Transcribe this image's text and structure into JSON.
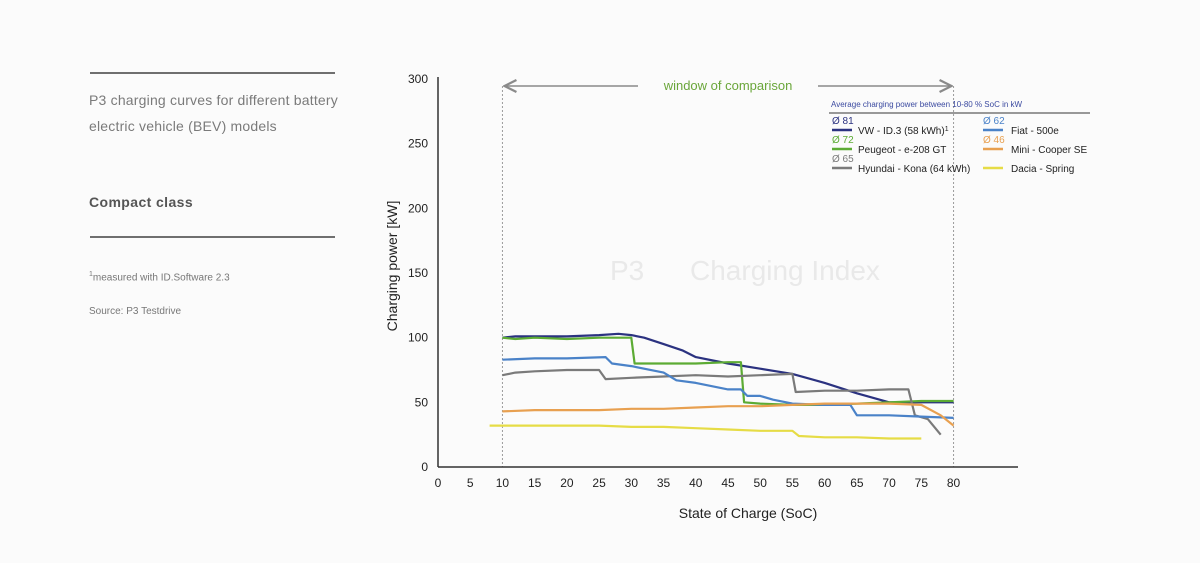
{
  "sidebar": {
    "description": "P3 charging curves for different battery electric vehicle (BEV) models",
    "class_label": "Compact class",
    "footnote_mark": "1",
    "footnote_text": "measured with ID.Software 2.3",
    "source": "Source: P3 Testdrive"
  },
  "watermark": {
    "logo": "P3",
    "text": "Charging Index"
  },
  "chart_data": {
    "type": "line",
    "xlabel": "State of Charge (SoC)",
    "ylabel": "Charging power [kW]",
    "xlim": [
      0,
      90
    ],
    "ylim": [
      0,
      300
    ],
    "x_ticks": [
      0,
      5,
      10,
      15,
      20,
      25,
      30,
      35,
      40,
      45,
      50,
      55,
      60,
      65,
      70,
      75,
      80
    ],
    "x_tick_labels": [
      "0",
      "5",
      "10",
      "15",
      "20",
      "25",
      "30",
      "35",
      "40",
      "45",
      "50",
      "55",
      "60",
      "65",
      "70",
      "75",
      "80"
    ],
    "y_ticks": [
      0,
      50,
      100,
      150,
      200,
      250,
      300
    ],
    "grid": false,
    "window": {
      "label": "window of comparison",
      "start": 10,
      "end": 80
    },
    "legend": {
      "title": "Average charging power between 10-80 % SoC in kW",
      "placement": "top-right",
      "entries": [
        {
          "avg": "Ø 81",
          "name": "VW - ID.3 (58 kWh)",
          "sup": "1",
          "color": "#2b3280",
          "column": 0,
          "row": 0
        },
        {
          "avg": "Ø 72",
          "name": "Peugeot - e-208 GT",
          "sup": "",
          "color": "#5cab34",
          "column": 0,
          "row": 1
        },
        {
          "avg": "Ø 65",
          "name": "Hyundai - Kona (64 kWh)",
          "sup": "",
          "color": "#7a7a7a",
          "column": 0,
          "row": 2
        },
        {
          "avg": "Ø 62",
          "name": "Fiat - 500e",
          "sup": "",
          "color": "#4a82c8",
          "column": 1,
          "row": 0
        },
        {
          "avg": "Ø 46",
          "name": "Mini - Cooper SE",
          "sup": "",
          "color": "#e8a050",
          "column": 1,
          "row": 1
        },
        {
          "avg": "",
          "name": "Dacia - Spring",
          "sup": "",
          "color": "#e6dc46",
          "column": 1,
          "row": 2
        }
      ]
    },
    "series": [
      {
        "name": "VW - ID.3 (58 kWh)",
        "color": "#2b3280",
        "x": [
          10,
          12,
          15,
          20,
          25,
          28,
          30,
          32,
          35,
          38,
          40,
          45,
          50,
          55,
          60,
          65,
          70,
          75,
          78,
          80
        ],
        "y": [
          100,
          101,
          101,
          101,
          102,
          103,
          102,
          100,
          95,
          90,
          85,
          80,
          76,
          72,
          65,
          57,
          50,
          50,
          50,
          50
        ]
      },
      {
        "name": "Peugeot - e-208 GT",
        "color": "#5cab34",
        "x": [
          10,
          12,
          15,
          20,
          25,
          30,
          30.5,
          35,
          40,
          45,
          47,
          47.5,
          50,
          55,
          60,
          65,
          70,
          75,
          80
        ],
        "y": [
          100,
          99,
          100,
          99,
          100,
          100,
          80,
          80,
          80,
          81,
          81,
          50,
          49,
          48,
          48,
          49,
          50,
          51,
          51
        ]
      },
      {
        "name": "Hyundai - Kona (64 kWh)",
        "color": "#7a7a7a",
        "x": [
          10,
          12,
          15,
          20,
          25,
          26,
          30,
          35,
          40,
          45,
          50,
          55,
          55.5,
          60,
          65,
          70,
          73,
          74,
          76,
          78
        ],
        "y": [
          71,
          73,
          74,
          75,
          75,
          68,
          69,
          70,
          71,
          70,
          71,
          72,
          58,
          59,
          59,
          60,
          60,
          40,
          37,
          25
        ]
      },
      {
        "name": "Fiat - 500e",
        "color": "#4a82c8",
        "x": [
          10,
          15,
          20,
          26,
          27,
          30,
          35,
          37,
          40,
          45,
          47,
          48,
          50,
          52,
          55,
          60,
          64,
          65,
          70,
          75,
          80
        ],
        "y": [
          83,
          84,
          84,
          85,
          80,
          78,
          73,
          67,
          65,
          60,
          60,
          55,
          55,
          52,
          49,
          48,
          48,
          40,
          40,
          39,
          38
        ]
      },
      {
        "name": "Mini - Cooper SE",
        "color": "#e8a050",
        "x": [
          10,
          15,
          20,
          25,
          30,
          35,
          40,
          45,
          50,
          55,
          60,
          65,
          70,
          75,
          78,
          80
        ],
        "y": [
          43,
          44,
          44,
          44,
          45,
          45,
          46,
          47,
          47,
          48,
          49,
          49,
          49,
          48,
          40,
          32
        ]
      },
      {
        "name": "Dacia - Spring",
        "color": "#e6dc46",
        "x": [
          8,
          10,
          15,
          20,
          25,
          30,
          35,
          40,
          45,
          50,
          55,
          56,
          60,
          65,
          70,
          75
        ],
        "y": [
          32,
          32,
          32,
          32,
          32,
          31,
          31,
          30,
          29,
          28,
          28,
          24,
          23,
          23,
          22,
          22
        ]
      }
    ]
  }
}
